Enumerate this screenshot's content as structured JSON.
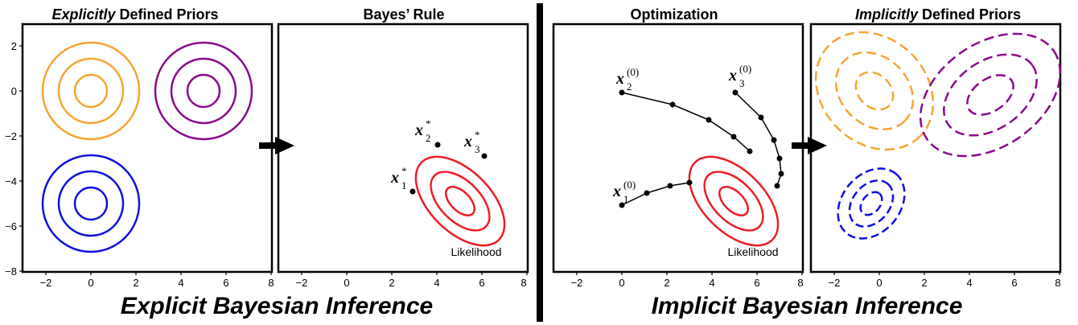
{
  "colors": {
    "orange": "#f7a531",
    "purple": "#8a0a8a",
    "blue": "#1010e0",
    "red": "#ee1c24",
    "black": "#000000"
  },
  "left_section": {
    "title": "Explicit Bayesian Inference",
    "panel1": {
      "title_emph": "Explicitly",
      "title_rest": " Defined Priors",
      "x_ticks": [
        "−2",
        "0",
        "2",
        "4",
        "6",
        "8"
      ],
      "y_ticks": [
        "2",
        "0",
        "−2",
        "−4",
        "−6",
        "−8"
      ]
    },
    "panel2": {
      "title": "Bayes’ Rule",
      "x_ticks": [
        "−2",
        "0",
        "2",
        "4",
        "6",
        "8"
      ],
      "likelihood_label": "Likelihood",
      "points": [
        {
          "var": "x",
          "sub": "1",
          "sup": "*"
        },
        {
          "var": "x",
          "sub": "2",
          "sup": "*"
        },
        {
          "var": "x",
          "sub": "3",
          "sup": "*"
        }
      ]
    }
  },
  "right_section": {
    "title": "Implicit Bayesian Inference",
    "panel3": {
      "title": "Optimization",
      "x_ticks": [
        "−2",
        "0",
        "2",
        "4",
        "6",
        "8"
      ],
      "likelihood_label": "Likelihood",
      "trajectories": [
        {
          "var": "x",
          "sub": "1",
          "sup": "(0)"
        },
        {
          "var": "x",
          "sub": "2",
          "sup": "(0)"
        },
        {
          "var": "x",
          "sub": "3",
          "sup": "(0)"
        }
      ]
    },
    "panel4": {
      "title_emph": "Implicitly",
      "title_rest": " Defined Priors",
      "x_ticks": [
        "−2",
        "0",
        "2",
        "4",
        "6",
        "8"
      ]
    }
  },
  "icons": [
    "right-arrow-icon",
    "right-arrow-icon"
  ]
}
